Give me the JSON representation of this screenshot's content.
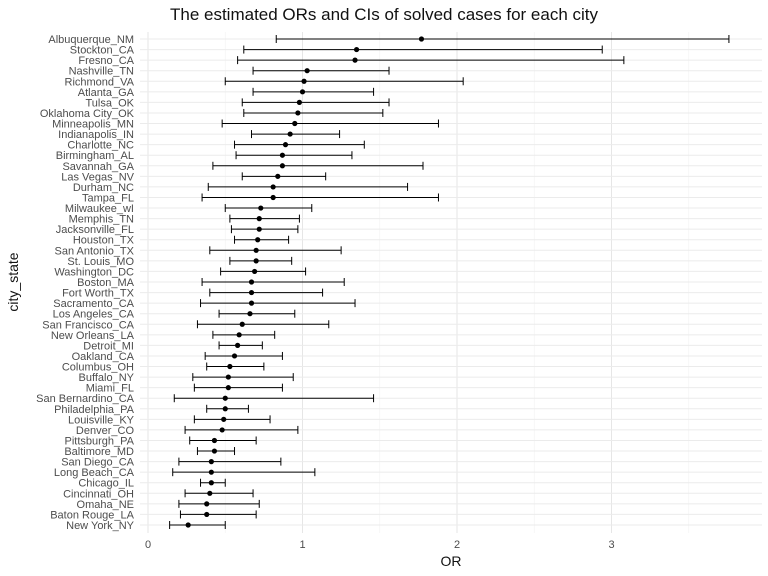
{
  "chart_data": {
    "type": "forest",
    "title": "The estimated ORs and CIs of solved cases for each city",
    "xlabel": "OR",
    "ylabel": "city_state",
    "xlim": [
      0,
      3.85
    ],
    "xticks": [
      0,
      1,
      2,
      3
    ],
    "grid": true,
    "rows": [
      {
        "label": "Albuquerque_NM",
        "or": 1.77,
        "lo": 0.83,
        "hi": 3.76
      },
      {
        "label": "Stockton_CA",
        "or": 1.35,
        "lo": 0.62,
        "hi": 2.94
      },
      {
        "label": "Fresno_CA",
        "or": 1.34,
        "lo": 0.58,
        "hi": 3.08
      },
      {
        "label": "Nashville_TN",
        "or": 1.03,
        "lo": 0.68,
        "hi": 1.56
      },
      {
        "label": "Richmond_VA",
        "or": 1.01,
        "lo": 0.5,
        "hi": 2.04
      },
      {
        "label": "Atlanta_GA",
        "or": 1.0,
        "lo": 0.68,
        "hi": 1.46
      },
      {
        "label": "Tulsa_OK",
        "or": 0.98,
        "lo": 0.61,
        "hi": 1.56
      },
      {
        "label": "Oklahoma City_OK",
        "or": 0.97,
        "lo": 0.62,
        "hi": 1.52
      },
      {
        "label": "Minneapolis_MN",
        "or": 0.95,
        "lo": 0.48,
        "hi": 1.88
      },
      {
        "label": "Indianapolis_IN",
        "or": 0.92,
        "lo": 0.67,
        "hi": 1.24
      },
      {
        "label": "Charlotte_NC",
        "or": 0.89,
        "lo": 0.56,
        "hi": 1.4
      },
      {
        "label": "Birmingham_AL",
        "or": 0.87,
        "lo": 0.57,
        "hi": 1.32
      },
      {
        "label": "Savannah_GA",
        "or": 0.87,
        "lo": 0.42,
        "hi": 1.78
      },
      {
        "label": "Las Vegas_NV",
        "or": 0.84,
        "lo": 0.61,
        "hi": 1.15
      },
      {
        "label": "Durham_NC",
        "or": 0.81,
        "lo": 0.39,
        "hi": 1.68
      },
      {
        "label": "Tampa_FL",
        "or": 0.81,
        "lo": 0.35,
        "hi": 1.88
      },
      {
        "label": "Milwaukee_wI",
        "or": 0.73,
        "lo": 0.5,
        "hi": 1.06
      },
      {
        "label": "Memphis_TN",
        "or": 0.72,
        "lo": 0.53,
        "hi": 0.98
      },
      {
        "label": "Jacksonville_FL",
        "or": 0.72,
        "lo": 0.54,
        "hi": 0.97
      },
      {
        "label": "Houston_TX",
        "or": 0.71,
        "lo": 0.56,
        "hi": 0.91
      },
      {
        "label": "San Antonio_TX",
        "or": 0.7,
        "lo": 0.4,
        "hi": 1.25
      },
      {
        "label": "St. Louis_MO",
        "or": 0.7,
        "lo": 0.53,
        "hi": 0.93
      },
      {
        "label": "Washington_DC",
        "or": 0.69,
        "lo": 0.47,
        "hi": 1.02
      },
      {
        "label": "Boston_MA",
        "or": 0.67,
        "lo": 0.35,
        "hi": 1.27
      },
      {
        "label": "Fort Worth_TX",
        "or": 0.67,
        "lo": 0.4,
        "hi": 1.13
      },
      {
        "label": "Sacramento_CA",
        "or": 0.67,
        "lo": 0.34,
        "hi": 1.34
      },
      {
        "label": "Los Angeles_CA",
        "or": 0.66,
        "lo": 0.46,
        "hi": 0.95
      },
      {
        "label": "San Francisco_CA",
        "or": 0.61,
        "lo": 0.32,
        "hi": 1.17
      },
      {
        "label": "New Orleans_LA",
        "or": 0.59,
        "lo": 0.42,
        "hi": 0.82
      },
      {
        "label": "Detroit_MI",
        "or": 0.58,
        "lo": 0.46,
        "hi": 0.74
      },
      {
        "label": "Oakland_CA",
        "or": 0.56,
        "lo": 0.37,
        "hi": 0.87
      },
      {
        "label": "Columbus_OH",
        "or": 0.53,
        "lo": 0.38,
        "hi": 0.75
      },
      {
        "label": "Buffalo_NY",
        "or": 0.52,
        "lo": 0.29,
        "hi": 0.94
      },
      {
        "label": "Miami_FL",
        "or": 0.52,
        "lo": 0.3,
        "hi": 0.87
      },
      {
        "label": "San Bernardino_CA",
        "or": 0.5,
        "lo": 0.17,
        "hi": 1.46
      },
      {
        "label": "Philadelphia_PA",
        "or": 0.5,
        "lo": 0.38,
        "hi": 0.65
      },
      {
        "label": "Louisville_KY",
        "or": 0.49,
        "lo": 0.3,
        "hi": 0.79
      },
      {
        "label": "Denver_CO",
        "or": 0.48,
        "lo": 0.24,
        "hi": 0.97
      },
      {
        "label": "Pittsburgh_PA",
        "or": 0.43,
        "lo": 0.27,
        "hi": 0.7
      },
      {
        "label": "Baltimore_MD",
        "or": 0.43,
        "lo": 0.32,
        "hi": 0.56
      },
      {
        "label": "San Diego_CA",
        "or": 0.41,
        "lo": 0.2,
        "hi": 0.86
      },
      {
        "label": "Long Beach_CA",
        "or": 0.41,
        "lo": 0.16,
        "hi": 1.08
      },
      {
        "label": "Chicago_IL",
        "or": 0.41,
        "lo": 0.34,
        "hi": 0.5
      },
      {
        "label": "Cincinnati_OH",
        "or": 0.4,
        "lo": 0.24,
        "hi": 0.68
      },
      {
        "label": "Omaha_NE",
        "or": 0.38,
        "lo": 0.2,
        "hi": 0.72
      },
      {
        "label": "Baton Rouge_LA",
        "or": 0.38,
        "lo": 0.21,
        "hi": 0.7
      },
      {
        "label": "New York_NY",
        "or": 0.26,
        "lo": 0.14,
        "hi": 0.5
      }
    ]
  }
}
